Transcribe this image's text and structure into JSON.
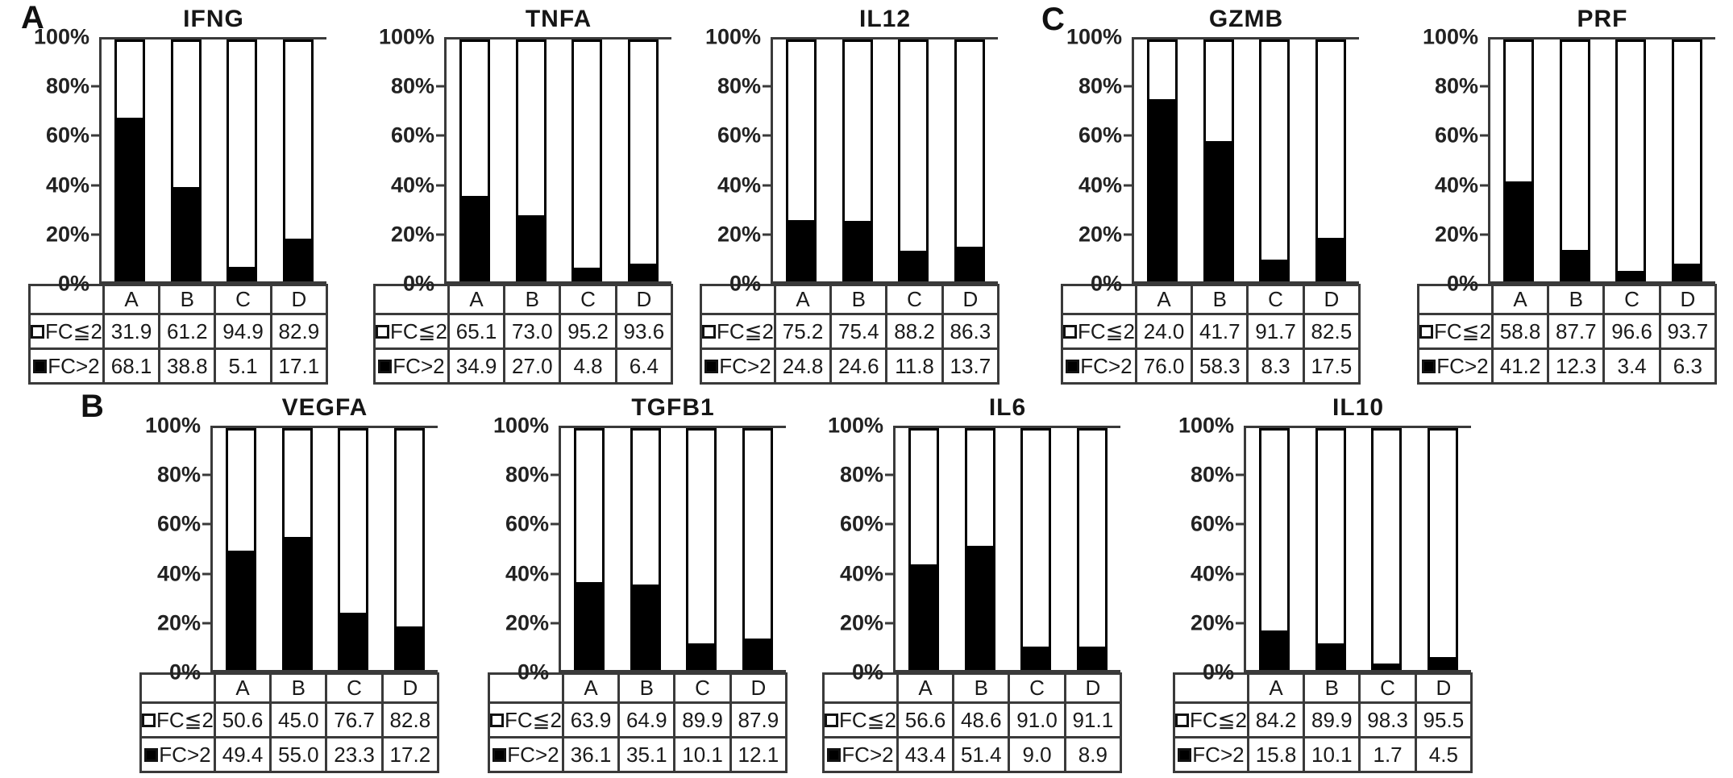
{
  "figure": {
    "panels": [
      {
        "label": "A",
        "row": 1,
        "charts": [
          "IFNG",
          "TNFA",
          "IL12"
        ]
      },
      {
        "label": "C",
        "row": 1,
        "charts": [
          "GZMB",
          "PRF"
        ]
      },
      {
        "label": "B",
        "row": 2,
        "charts": [
          "VEGFA",
          "TGFB1",
          "IL6",
          "IL10"
        ]
      }
    ]
  },
  "axis": {
    "yticks": [
      "100%",
      "80%",
      "60%",
      "40%",
      "20%",
      "0%"
    ],
    "categories": [
      "A",
      "B",
      "C",
      "D"
    ]
  },
  "legend": {
    "le_label": "FC≦2",
    "gt_label": "FC>2",
    "le_swatch": "white-square",
    "gt_swatch": "black-square"
  },
  "colors": {
    "bar_fill": "#000000",
    "bar_outline": "#000000",
    "axis_line": "#3a3a3a",
    "text": "#1a1a1a",
    "background": "#ffffff"
  },
  "chart_data": [
    {
      "type": "bar",
      "stacked": true,
      "panel": "A",
      "title": "IFNG",
      "categories": [
        "A",
        "B",
        "C",
        "D"
      ],
      "ylim": [
        0,
        100
      ],
      "yticks": [
        0,
        20,
        40,
        60,
        80,
        100
      ],
      "ylabel": "%",
      "series": [
        {
          "name": "FC≦2",
          "values": [
            31.9,
            61.2,
            94.9,
            82.9
          ]
        },
        {
          "name": "FC>2",
          "values": [
            68.1,
            38.8,
            5.1,
            17.1
          ]
        }
      ]
    },
    {
      "type": "bar",
      "stacked": true,
      "panel": "A",
      "title": "TNFA",
      "categories": [
        "A",
        "B",
        "C",
        "D"
      ],
      "ylim": [
        0,
        100
      ],
      "yticks": [
        0,
        20,
        40,
        60,
        80,
        100
      ],
      "ylabel": "%",
      "series": [
        {
          "name": "FC≦2",
          "values": [
            65.1,
            73.0,
            95.2,
            93.6
          ]
        },
        {
          "name": "FC>2",
          "values": [
            34.9,
            27.0,
            4.8,
            6.4
          ]
        }
      ]
    },
    {
      "type": "bar",
      "stacked": true,
      "panel": "A",
      "title": "IL12",
      "categories": [
        "A",
        "B",
        "C",
        "D"
      ],
      "ylim": [
        0,
        100
      ],
      "yticks": [
        0,
        20,
        40,
        60,
        80,
        100
      ],
      "ylabel": "%",
      "series": [
        {
          "name": "FC≦2",
          "values": [
            75.2,
            75.4,
            88.2,
            86.3
          ]
        },
        {
          "name": "FC>2",
          "values": [
            24.8,
            24.6,
            11.8,
            13.7
          ]
        }
      ]
    },
    {
      "type": "bar",
      "stacked": true,
      "panel": "C",
      "title": "GZMB",
      "categories": [
        "A",
        "B",
        "C",
        "D"
      ],
      "ylim": [
        0,
        100
      ],
      "yticks": [
        0,
        20,
        40,
        60,
        80,
        100
      ],
      "ylabel": "%",
      "series": [
        {
          "name": "FC≦2",
          "values": [
            24.0,
            41.7,
            91.7,
            82.5
          ]
        },
        {
          "name": "FC>2",
          "values": [
            76.0,
            58.3,
            8.3,
            17.5
          ]
        }
      ]
    },
    {
      "type": "bar",
      "stacked": true,
      "panel": "C",
      "title": "PRF",
      "categories": [
        "A",
        "B",
        "C",
        "D"
      ],
      "ylim": [
        0,
        100
      ],
      "yticks": [
        0,
        20,
        40,
        60,
        80,
        100
      ],
      "ylabel": "%",
      "series": [
        {
          "name": "FC≦2",
          "values": [
            58.8,
            87.7,
            96.6,
            93.7
          ]
        },
        {
          "name": "FC>2",
          "values": [
            41.2,
            12.3,
            3.4,
            6.3
          ]
        }
      ]
    },
    {
      "type": "bar",
      "stacked": true,
      "panel": "B",
      "title": "VEGFA",
      "categories": [
        "A",
        "B",
        "C",
        "D"
      ],
      "ylim": [
        0,
        100
      ],
      "yticks": [
        0,
        20,
        40,
        60,
        80,
        100
      ],
      "ylabel": "%",
      "series": [
        {
          "name": "FC≦2",
          "values": [
            50.6,
            45.0,
            76.7,
            82.8
          ]
        },
        {
          "name": "FC>2",
          "values": [
            49.4,
            55.0,
            23.3,
            17.2
          ]
        }
      ]
    },
    {
      "type": "bar",
      "stacked": true,
      "panel": "B",
      "title": "TGFB1",
      "categories": [
        "A",
        "B",
        "C",
        "D"
      ],
      "ylim": [
        0,
        100
      ],
      "yticks": [
        0,
        20,
        40,
        60,
        80,
        100
      ],
      "ylabel": "%",
      "series": [
        {
          "name": "FC≦2",
          "values": [
            63.9,
            64.9,
            89.9,
            87.9
          ]
        },
        {
          "name": "FC>2",
          "values": [
            36.1,
            35.1,
            10.1,
            12.1
          ]
        }
      ]
    },
    {
      "type": "bar",
      "stacked": true,
      "panel": "B",
      "title": "IL6",
      "categories": [
        "A",
        "B",
        "C",
        "D"
      ],
      "ylim": [
        0,
        100
      ],
      "yticks": [
        0,
        20,
        40,
        60,
        80,
        100
      ],
      "ylabel": "%",
      "series": [
        {
          "name": "FC≦2",
          "values": [
            56.6,
            48.6,
            91.0,
            91.1
          ]
        },
        {
          "name": "FC>2",
          "values": [
            43.4,
            51.4,
            9.0,
            8.9
          ]
        }
      ]
    },
    {
      "type": "bar",
      "stacked": true,
      "panel": "B",
      "title": "IL10",
      "categories": [
        "A",
        "B",
        "C",
        "D"
      ],
      "ylim": [
        0,
        100
      ],
      "yticks": [
        0,
        20,
        40,
        60,
        80,
        100
      ],
      "ylabel": "%",
      "series": [
        {
          "name": "FC≦2",
          "values": [
            84.2,
            89.9,
            98.3,
            95.5
          ]
        },
        {
          "name": "FC>2",
          "values": [
            15.8,
            10.1,
            1.7,
            4.5
          ]
        }
      ]
    }
  ]
}
